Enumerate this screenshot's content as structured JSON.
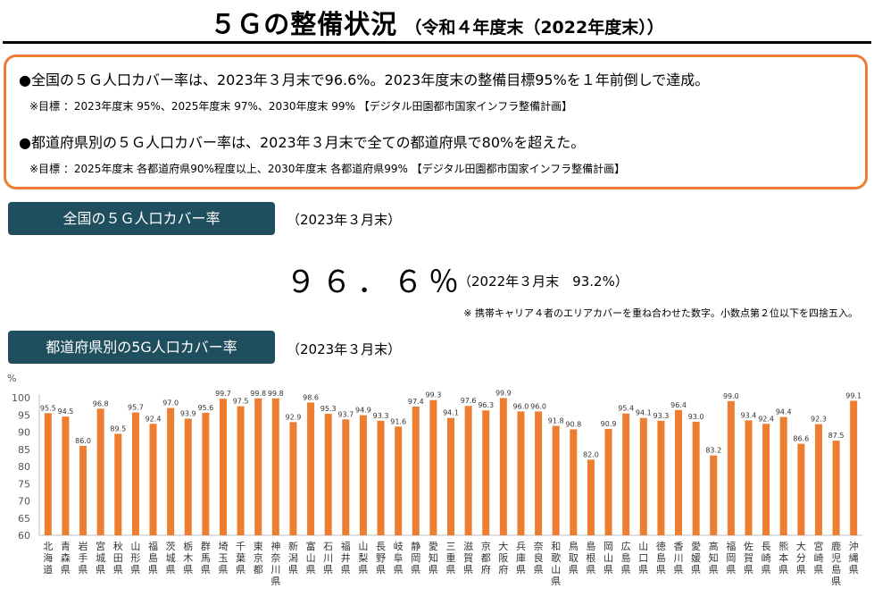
{
  "header": {
    "title": "５Ｇの整備状況",
    "subtitle": "（令和４年度末（2022年度末））"
  },
  "summary": {
    "line1": "●全国の５Ｇ人口カバー率は、2023年３月末で96.6%。2023年度末の整備目標95%を１年前倒しで達成。",
    "note1": "※目標 ：2023年度末 95%、2025年度末 97%、2030年度末 99% 【デジタル田園都市国家インフラ整備計画】",
    "line2": "●都道府県別の５Ｇ人口カバー率は、2023年３月末で全ての都道府県で80%を超えた。",
    "note2": "※目標 ：2025年度末 各都道府県90%程度以上、2030年度末 各都道府県99% 【デジタル田園都市国家インフラ整備計画】"
  },
  "national": {
    "label": "全国の５Ｇ人口カバー率",
    "date": "（2023年３月末）",
    "value": "９６．６％",
    "previous": "（2022年３月末　93.2%）",
    "footnote": "※ 携帯キャリア４者のエリアカバーを重ね合わせた数字。小数点第２位以下を四捨五入。"
  },
  "prefectural": {
    "label": "都道府県別の5G人口カバー率",
    "date": "（2023年３月末）"
  },
  "colors": {
    "bar": "#ED7D31",
    "label_bg": "#1F4E5F",
    "border": "#ED7D31"
  },
  "chart_data": {
    "type": "bar",
    "ylabel": "%",
    "ylim": [
      60,
      100
    ],
    "yticks": [
      60,
      65,
      70,
      75,
      80,
      85,
      90,
      95,
      100
    ],
    "grid": false,
    "categories": [
      "北海道",
      "青森県",
      "岩手県",
      "宮城県",
      "秋田県",
      "山形県",
      "福島県",
      "茨城県",
      "栃木県",
      "群馬県",
      "埼玉県",
      "千葉県",
      "東京都",
      "神奈川県",
      "新潟県",
      "富山県",
      "石川県",
      "福井県",
      "山梨県",
      "長野県",
      "岐阜県",
      "静岡県",
      "愛知県",
      "三重県",
      "滋賀県",
      "京都府",
      "大阪府",
      "兵庫県",
      "奈良県",
      "和歌山県",
      "鳥取県",
      "島根県",
      "岡山県",
      "広島県",
      "山口県",
      "徳島県",
      "香川県",
      "愛媛県",
      "高知県",
      "福岡県",
      "佐賀県",
      "長崎県",
      "熊本県",
      "大分県",
      "宮崎県",
      "鹿児島県",
      "沖縄県"
    ],
    "values": [
      95.5,
      94.5,
      86.0,
      96.8,
      89.5,
      95.7,
      92.4,
      97.0,
      93.9,
      95.6,
      99.7,
      97.5,
      99.8,
      99.8,
      92.9,
      98.6,
      95.3,
      93.7,
      94.9,
      93.3,
      91.6,
      97.4,
      99.3,
      94.1,
      97.6,
      96.3,
      99.9,
      96.0,
      96.0,
      91.8,
      90.8,
      82.0,
      90.9,
      95.4,
      94.1,
      93.3,
      96.4,
      93.0,
      83.2,
      99.0,
      93.4,
      92.4,
      94.4,
      86.6,
      92.3,
      87.5,
      99.1
    ],
    "value_labels": [
      "95.5",
      "94.5",
      "86.0",
      "96.8",
      "89.5",
      "95.7",
      "92.4",
      "97.0",
      "93.9",
      "95.6",
      "99.7",
      "97.5",
      "99.8",
      "99.8",
      "92.9",
      "98.6",
      "95.3",
      "93.7",
      "94.9",
      "93.3",
      "91.6",
      "97.4",
      "99.3",
      "94.1",
      "97.6",
      "96.3",
      "99.9",
      "96.0",
      "96.0",
      "91.8",
      "90.8",
      "82.0",
      "90.9",
      "95.4",
      "94.1",
      "93.3",
      "96.4",
      "93.0",
      "83.2",
      "99.0",
      "93.4",
      "92.4",
      "94.4",
      "86.6",
      "92.3",
      "87.5",
      "99.1"
    ]
  }
}
